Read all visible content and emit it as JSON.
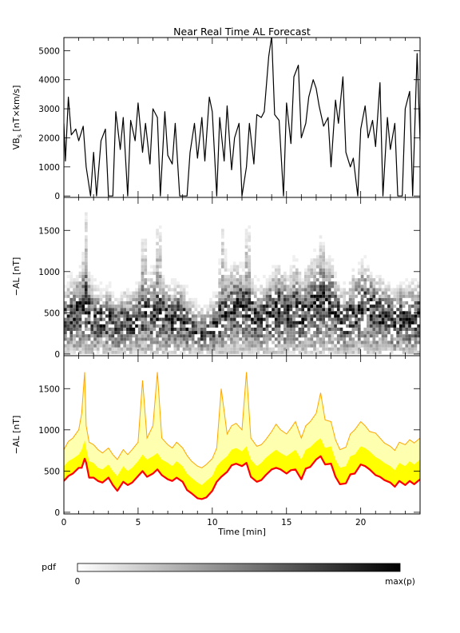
{
  "chart_data": [
    {
      "type": "line",
      "title": "Near Real Time AL Forecast",
      "ylabel": "VB",
      "ylabel_sub": "s",
      "ylabel_units": " [nT×km/s]",
      "xlim": [
        0,
        24
      ],
      "ylim": [
        -50,
        5450
      ],
      "yticks": [
        0,
        1000,
        2000,
        3000,
        4000,
        5000
      ],
      "series": [
        {
          "x": [
            0,
            0.1,
            0.3,
            0.5,
            0.8,
            1.0,
            1.3,
            1.5,
            1.8,
            2.0,
            2.2,
            2.5,
            2.8,
            3.0,
            3.3,
            3.5,
            3.8,
            4.0,
            4.3,
            4.5,
            4.8,
            5.0,
            5.3,
            5.5,
            5.8,
            6.0,
            6.3,
            6.5,
            6.8,
            7.0,
            7.3,
            7.5,
            7.8,
            8.0,
            8.3,
            8.5,
            8.8,
            9.0,
            9.3,
            9.5,
            9.8,
            10.0,
            10.3,
            10.5,
            10.8,
            11.0,
            11.3,
            11.5,
            11.8,
            12.0,
            12.3,
            12.5,
            12.8,
            13.0,
            13.3,
            13.5,
            13.8,
            14.0,
            14.2,
            14.5,
            14.8,
            15.0,
            15.3,
            15.5,
            15.8,
            16.0,
            16.3,
            16.5,
            16.8,
            17.0,
            17.2,
            17.5,
            17.8,
            18.0,
            18.3,
            18.5,
            18.8,
            19.0,
            19.3,
            19.5,
            19.8,
            20.0,
            20.3,
            20.5,
            20.8,
            21.0,
            21.3,
            21.5,
            21.8,
            22.0,
            22.3,
            22.5,
            22.8,
            23.0,
            23.3,
            23.5,
            23.8,
            24.0
          ],
          "y": [
            2500,
            1200,
            3400,
            2100,
            2300,
            1900,
            2400,
            1000,
            0,
            1500,
            0,
            1900,
            2300,
            0,
            0,
            2900,
            1600,
            2700,
            0,
            2600,
            1900,
            3200,
            1500,
            2500,
            1100,
            3000,
            2700,
            0,
            2900,
            1400,
            1100,
            2500,
            0,
            0,
            0,
            1500,
            2500,
            1300,
            2700,
            1200,
            3400,
            2900,
            0,
            2700,
            1200,
            3100,
            900,
            2000,
            2500,
            0,
            1000,
            2500,
            1100,
            2800,
            2700,
            2900,
            4800,
            5500,
            2800,
            2600,
            0,
            3200,
            1800,
            4100,
            4500,
            2000,
            2500,
            3400,
            4000,
            3700,
            3100,
            2400,
            2700,
            1000,
            3300,
            2500,
            4100,
            1500,
            1000,
            1300,
            0,
            2300,
            3100,
            2000,
            2600,
            1700,
            3900,
            0,
            2700,
            1600,
            2500,
            0,
            0,
            3000,
            3600,
            0,
            4900,
            1900
          ]
        }
      ]
    },
    {
      "type": "heatmap",
      "ylabel": "−AL [nT]",
      "xlim": [
        0,
        24
      ],
      "ylim": [
        -20,
        1900
      ],
      "yticks": [
        0,
        500,
        1000,
        1500
      ],
      "cells_description": "probability density (pdf) of -AL over time, grey shaded by density",
      "colorbar": {
        "label": "pdf",
        "min_label": "0",
        "max_label": "max(p)"
      }
    },
    {
      "type": "area",
      "ylabel": "−AL [nT]",
      "xlabel": "Time [min]",
      "xlim": [
        0,
        24
      ],
      "ylim": [
        -20,
        1900
      ],
      "yticks": [
        0,
        500,
        1000,
        1500
      ],
      "xticks": [
        0,
        5,
        10,
        15,
        20
      ],
      "x": [
        0,
        0.3,
        0.6,
        1.0,
        1.2,
        1.4,
        1.5,
        1.7,
        2.0,
        2.3,
        2.6,
        3.0,
        3.3,
        3.6,
        4.0,
        4.3,
        4.6,
        5.0,
        5.3,
        5.6,
        6.0,
        6.3,
        6.6,
        7.0,
        7.3,
        7.6,
        8.0,
        8.3,
        8.6,
        9.0,
        9.3,
        9.6,
        10.0,
        10.3,
        10.6,
        11.0,
        11.3,
        11.6,
        12.0,
        12.3,
        12.6,
        13.0,
        13.3,
        13.6,
        14.0,
        14.3,
        14.6,
        15.0,
        15.3,
        15.6,
        16.0,
        16.3,
        16.6,
        17.0,
        17.3,
        17.6,
        18.0,
        18.3,
        18.6,
        19.0,
        19.3,
        19.6,
        20.0,
        20.3,
        20.6,
        21.0,
        21.3,
        21.6,
        22.0,
        22.3,
        22.6,
        23.0,
        23.3,
        23.6,
        24.0
      ],
      "series": [
        {
          "name": "",
          "color": "#ff0000",
          "values": [
            380,
            440,
            470,
            540,
            540,
            650,
            600,
            420,
            420,
            380,
            360,
            420,
            330,
            260,
            370,
            330,
            360,
            440,
            500,
            430,
            470,
            520,
            450,
            400,
            380,
            420,
            370,
            270,
            230,
            170,
            160,
            180,
            260,
            370,
            430,
            490,
            570,
            590,
            560,
            600,
            430,
            370,
            390,
            450,
            520,
            540,
            520,
            470,
            510,
            520,
            400,
            530,
            550,
            640,
            680,
            580,
            590,
            430,
            340,
            350,
            460,
            470,
            580,
            560,
            520,
            450,
            430,
            390,
            360,
            310,
            380,
            330,
            380,
            340,
            400
          ]
        },
        {
          "name": "",
          "color": "#ffff00",
          "values": [
            560,
            620,
            650,
            700,
            760,
            880,
            780,
            620,
            600,
            540,
            520,
            580,
            500,
            440,
            560,
            500,
            540,
            620,
            700,
            640,
            680,
            720,
            640,
            600,
            560,
            620,
            560,
            470,
            420,
            360,
            330,
            380,
            440,
            560,
            620,
            680,
            760,
            780,
            740,
            800,
            640,
            560,
            600,
            660,
            720,
            760,
            720,
            680,
            720,
            760,
            640,
            760,
            790,
            860,
            900,
            780,
            800,
            640,
            540,
            560,
            680,
            700,
            800,
            780,
            740,
            670,
            640,
            600,
            560,
            510,
            600,
            560,
            620,
            580,
            640
          ]
        },
        {
          "name": "",
          "color": "#ffa500",
          "values": [
            760,
            860,
            900,
            1000,
            1200,
            1700,
            1050,
            850,
            820,
            760,
            720,
            780,
            700,
            640,
            760,
            700,
            760,
            850,
            1600,
            900,
            1050,
            1700,
            900,
            820,
            780,
            850,
            780,
            690,
            620,
            560,
            540,
            580,
            650,
            780,
            1500,
            950,
            1050,
            1080,
            1000,
            1700,
            900,
            800,
            820,
            880,
            980,
            1070,
            1000,
            950,
            1020,
            1100,
            900,
            1050,
            1100,
            1200,
            1450,
            1120,
            1100,
            880,
            760,
            790,
            950,
            1000,
            1100,
            1050,
            980,
            960,
            900,
            840,
            800,
            750,
            850,
            820,
            880,
            840,
            900
          ]
        }
      ]
    }
  ]
}
